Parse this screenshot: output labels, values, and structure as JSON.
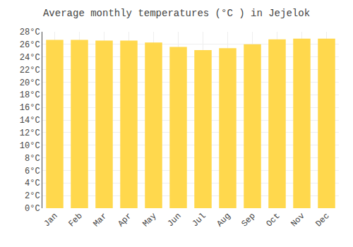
{
  "chart_data": {
    "type": "bar",
    "title": "Average monthly temperatures (°C ) in Jejelok",
    "categories": [
      "Jan",
      "Feb",
      "Mar",
      "Apr",
      "May",
      "Jun",
      "Jul",
      "Aug",
      "Sep",
      "Oct",
      "Nov",
      "Dec"
    ],
    "values": [
      26.7,
      26.7,
      26.6,
      26.6,
      26.3,
      25.6,
      25.1,
      25.4,
      26.0,
      26.8,
      26.9,
      26.9
    ],
    "color": "#FFD84D",
    "ylim": [
      0,
      28
    ],
    "yticks": [
      {
        "value": 0,
        "label": "0°C"
      },
      {
        "value": 2,
        "label": "2°C"
      },
      {
        "value": 4,
        "label": "4°C"
      },
      {
        "value": 6,
        "label": "6°C"
      },
      {
        "value": 8,
        "label": "8°C"
      },
      {
        "value": 10,
        "label": "10°C"
      },
      {
        "value": 12,
        "label": "12°C"
      },
      {
        "value": 14,
        "label": "14°C"
      },
      {
        "value": 16,
        "label": "16°C"
      },
      {
        "value": 18,
        "label": "18°C"
      },
      {
        "value": 20,
        "label": "20°C"
      },
      {
        "value": 22,
        "label": "22°C"
      },
      {
        "value": 24,
        "label": "24°C"
      },
      {
        "value": 26,
        "label": "26°C"
      },
      {
        "value": 28,
        "label": "28°C"
      }
    ],
    "grid": true
  }
}
